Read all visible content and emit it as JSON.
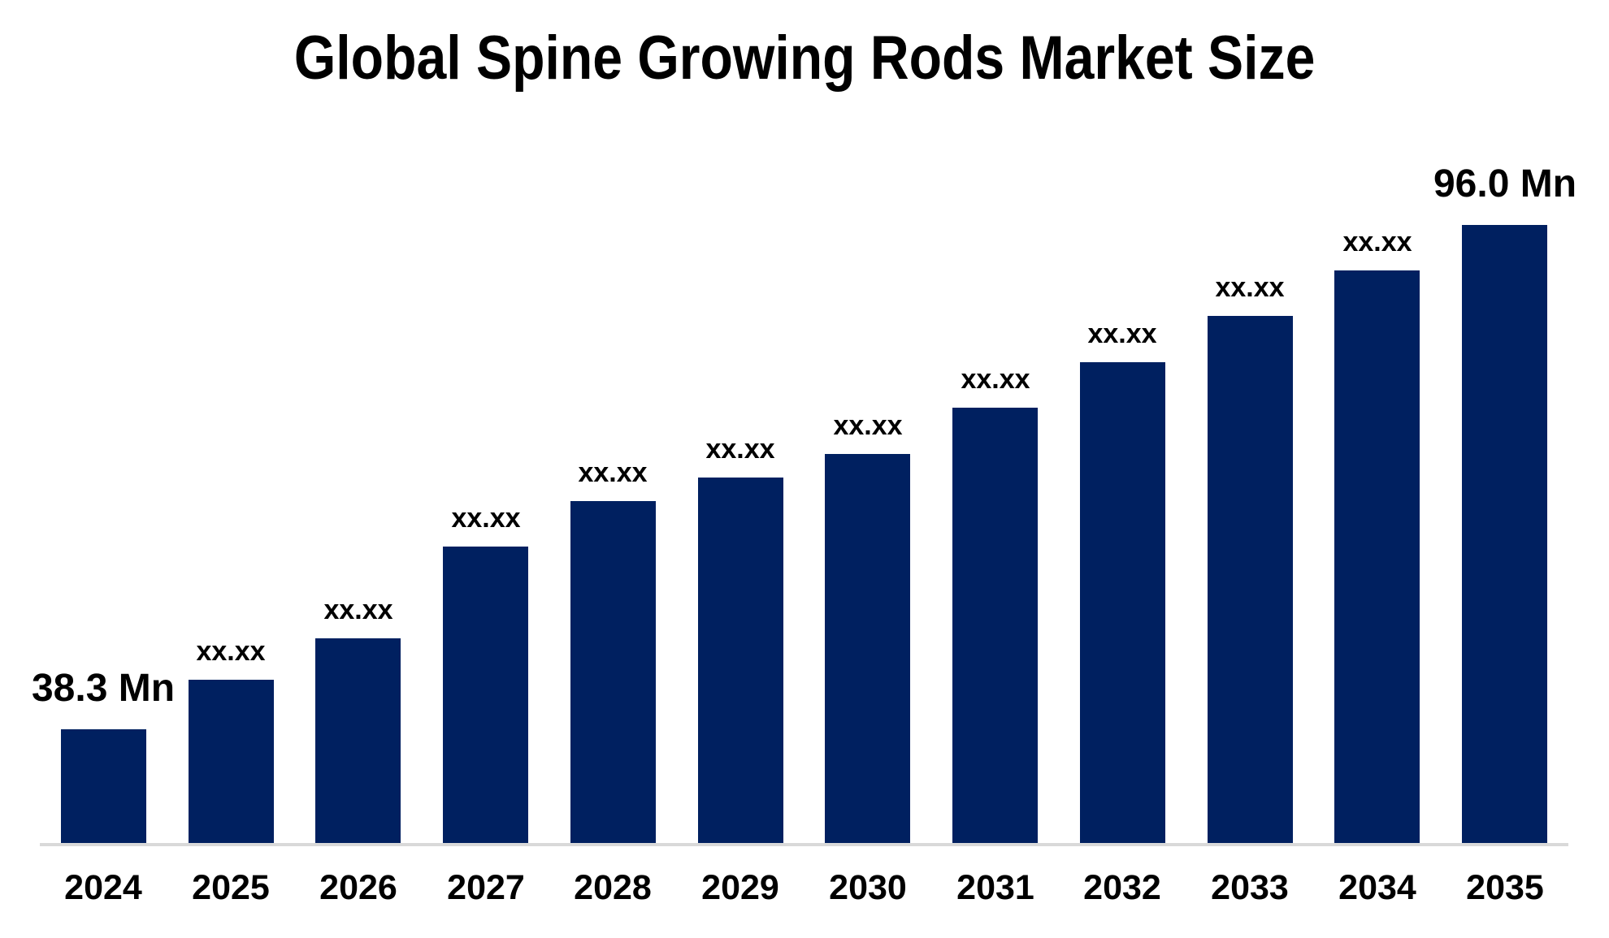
{
  "chart_data": {
    "type": "bar",
    "title": "Global Spine Growing Rods Market Size",
    "categories": [
      "2024",
      "2025",
      "2026",
      "2027",
      "2028",
      "2029",
      "2030",
      "2031",
      "2032",
      "2033",
      "2034",
      "2035"
    ],
    "bar_labels": [
      "38.3 Mn",
      "xx.xx",
      "xx.xx",
      "xx.xx",
      "xx.xx",
      "xx.xx",
      "xx.xx",
      "xx.xx",
      "xx.xx",
      "xx.xx",
      "xx.xx",
      "96.0 Mn"
    ],
    "values_estimated_mn": [
      38.3,
      44.0,
      48.7,
      59.2,
      64.4,
      67.1,
      69.8,
      75.1,
      80.3,
      85.6,
      90.8,
      96.0
    ],
    "known_values": {
      "2024": "38.3 Mn",
      "2035": "96.0 Mn"
    },
    "unit": "Mn",
    "value_axis_min_mn": 25.3,
    "xlabel": "",
    "ylabel": "",
    "grid": "off",
    "legend": "none",
    "value_labels_position": "above-bars",
    "bar_color": "#002060",
    "axis_line_color": "#D9D9D9",
    "text_color": "#000000",
    "background": "#FFFFFF"
  }
}
